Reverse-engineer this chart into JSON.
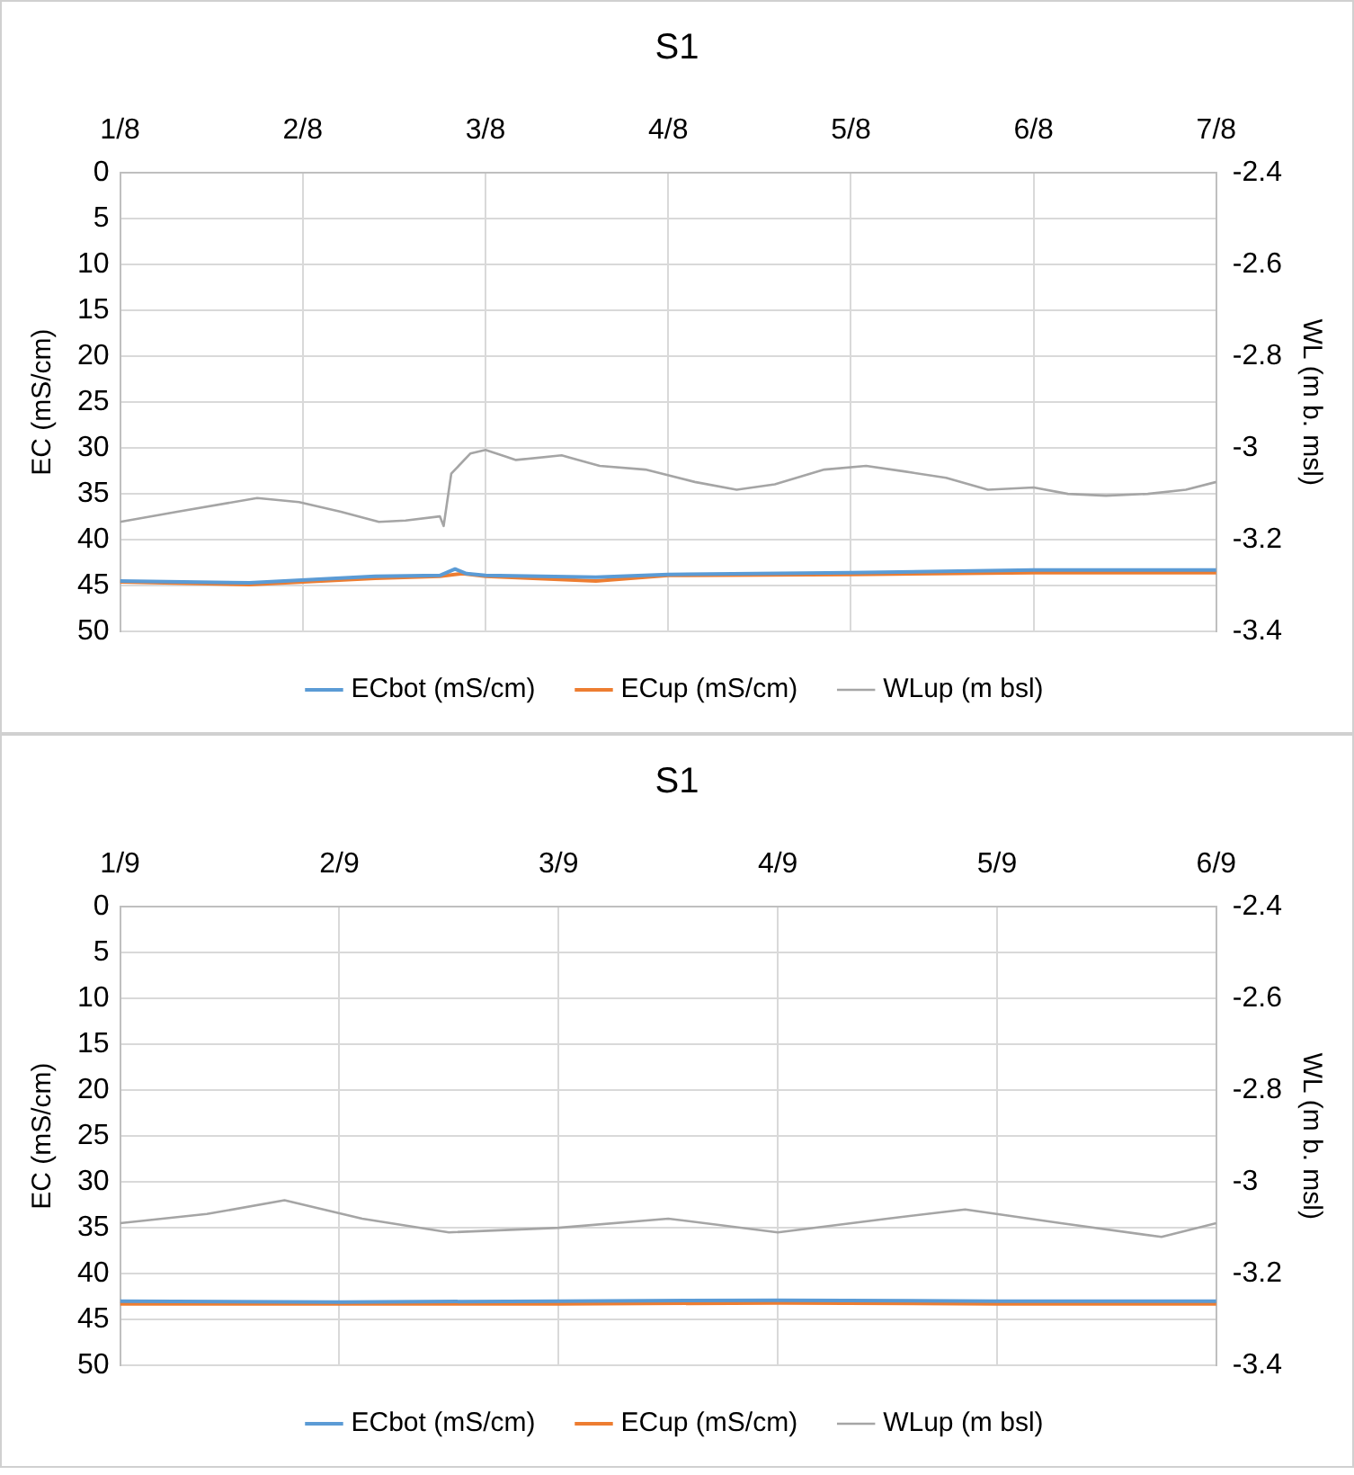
{
  "chart_data": [
    {
      "type": "line",
      "title": "S1",
      "ylabel": "EC (mS/cm)",
      "y2label": "WL (m b. msl)",
      "xlim": [
        "--08-01",
        "--08-07"
      ],
      "xticks": [
        {
          "value": "--08-01",
          "label": "1/8"
        },
        {
          "value": "--08-02",
          "label": "2/8"
        },
        {
          "value": "--08-03",
          "label": "3/8"
        },
        {
          "value": "--08-04",
          "label": "4/8"
        },
        {
          "value": "--08-05",
          "label": "5/8"
        },
        {
          "value": "--08-06",
          "label": "6/8"
        },
        {
          "value": "--08-07",
          "label": "7/8"
        }
      ],
      "ylim": [
        50,
        0
      ],
      "yticks": [
        0,
        5,
        10,
        15,
        20,
        25,
        30,
        35,
        40,
        45,
        50
      ],
      "y2lim": [
        -3.4,
        -2.4
      ],
      "y2ticks": [
        -2.4,
        -2.6,
        -2.8,
        -3,
        -3.2,
        -3.4
      ],
      "grid": true,
      "legend": "bottom",
      "marker": "none",
      "line_style": "solid",
      "series": [
        {
          "name": "ECbot (mS/cm)",
          "color": "#5b9bd5",
          "x": [
            "--08-01T00:00",
            "--08-01T17:00",
            "--08-02T09:30",
            "--08-02T18:00",
            "--08-02T20:00",
            "--08-02T21:30",
            "--08-03T00:00",
            "--08-03T14:30",
            "--08-04T00:00",
            "--08-05T00:00",
            "--08-06T00:00",
            "--08-07T00:00"
          ],
          "values": [
            44.5,
            44.7,
            44,
            43.9,
            43.2,
            43.7,
            43.9,
            44.1,
            43.8,
            43.6,
            43.3,
            43.3
          ]
        },
        {
          "name": "ECup (mS/cm)",
          "color": "#ed7d31",
          "x": [
            "--08-01T00:00",
            "--08-01T17:00",
            "--08-02T09:30",
            "--08-02T18:00",
            "--08-02T21:00",
            "--08-03T00:00",
            "--08-03T14:30",
            "--08-04T00:00",
            "--08-05T00:00",
            "--08-06T00:00",
            "--08-07T00:00"
          ],
          "values": [
            44.6,
            44.9,
            44.2,
            44,
            43.7,
            44,
            44.5,
            43.9,
            43.8,
            43.6,
            43.6
          ]
        },
        {
          "name": "WLup (m bsl)",
          "color": "#a5a5a5",
          "axis": "y2",
          "x": [
            "--08-01T00:00",
            "--08-01T07:30",
            "--08-01T18:00",
            "--08-01T23:30",
            "--08-02T05:00",
            "--08-02T10:00",
            "--08-02T13:30",
            "--08-02T18:00",
            "--08-02T18:30",
            "--08-02T19:30",
            "--08-02T22:00",
            "--08-03T00:00",
            "--08-03T04:00",
            "--08-03T10:00",
            "--08-03T15:00",
            "--08-03T21:00",
            "--08-04T03:30",
            "--08-04T09:00",
            "--08-04T14:00",
            "--08-04T20:30",
            "--08-05T02:00",
            "--08-05T07:00",
            "--08-05T12:30",
            "--08-05T18:00",
            "--08-06T00:00",
            "--08-06T04:30",
            "--08-06T09:30",
            "--08-06T15:00",
            "--08-06T20:00",
            "--08-07T00:00"
          ],
          "values": [
            -3.161,
            -3.139,
            -3.109,
            -3.118,
            -3.139,
            -3.161,
            -3.158,
            -3.149,
            -3.17,
            -3.056,
            -3.012,
            -3.004,
            -3.026,
            -3.016,
            -3.039,
            -3.047,
            -3.074,
            -3.091,
            -3.079,
            -3.047,
            -3.039,
            -3.051,
            -3.065,
            -3.091,
            -3.086,
            -3.1,
            -3.104,
            -3.1,
            -3.091,
            -3.074
          ]
        }
      ]
    },
    {
      "type": "line",
      "title": "S1",
      "ylabel": "EC (mS/cm)",
      "y2label": "WL (m b. msl)",
      "xlim": [
        "--09-01",
        "--09-06"
      ],
      "xticks": [
        {
          "value": "--09-01",
          "label": "1/9"
        },
        {
          "value": "--09-02",
          "label": "2/9"
        },
        {
          "value": "--09-03",
          "label": "3/9"
        },
        {
          "value": "--09-04",
          "label": "4/9"
        },
        {
          "value": "--09-05",
          "label": "5/9"
        },
        {
          "value": "--09-06",
          "label": "6/9"
        }
      ],
      "ylim": [
        50,
        0
      ],
      "yticks": [
        0,
        5,
        10,
        15,
        20,
        25,
        30,
        35,
        40,
        45,
        50
      ],
      "y2lim": [
        -3.4,
        -2.4
      ],
      "y2ticks": [
        -2.4,
        -2.6,
        -2.8,
        -3,
        -3.2,
        -3.4
      ],
      "grid": true,
      "legend": "bottom",
      "marker": "none",
      "line_style": "solid",
      "series": [
        {
          "name": "ECbot (mS/cm)",
          "color": "#5b9bd5",
          "x": [
            "--09-01T00:00",
            "--09-02T00:00",
            "--09-03T00:00",
            "--09-04T00:00",
            "--09-05T00:00",
            "--09-06T00:00"
          ],
          "values": [
            43,
            43.1,
            43,
            42.9,
            43,
            43
          ]
        },
        {
          "name": "ECup (mS/cm)",
          "color": "#ed7d31",
          "x": [
            "--09-01T00:00",
            "--09-02T00:00",
            "--09-03T00:00",
            "--09-04T00:00",
            "--09-05T00:00",
            "--09-06T00:00"
          ],
          "values": [
            43.3,
            43.3,
            43.3,
            43.2,
            43.3,
            43.3
          ]
        },
        {
          "name": "WLup (m bsl)",
          "color": "#a5a5a5",
          "axis": "y2",
          "x": [
            "--09-01T00:00",
            "--09-01T09:30",
            "--09-01T18:00",
            "--09-02T02:30",
            "--09-02T12:00",
            "--09-03T00:00",
            "--09-03T12:00",
            "--09-04T00:00",
            "--09-04T12:00",
            "--09-04T20:30",
            "--09-05T07:00",
            "--09-05T18:00",
            "--09-06T00:00"
          ],
          "values": [
            -3.09,
            -3.07,
            -3.04,
            -3.08,
            -3.11,
            -3.1,
            -3.08,
            -3.11,
            -3.08,
            -3.06,
            -3.09,
            -3.12,
            -3.09
          ]
        }
      ]
    }
  ]
}
